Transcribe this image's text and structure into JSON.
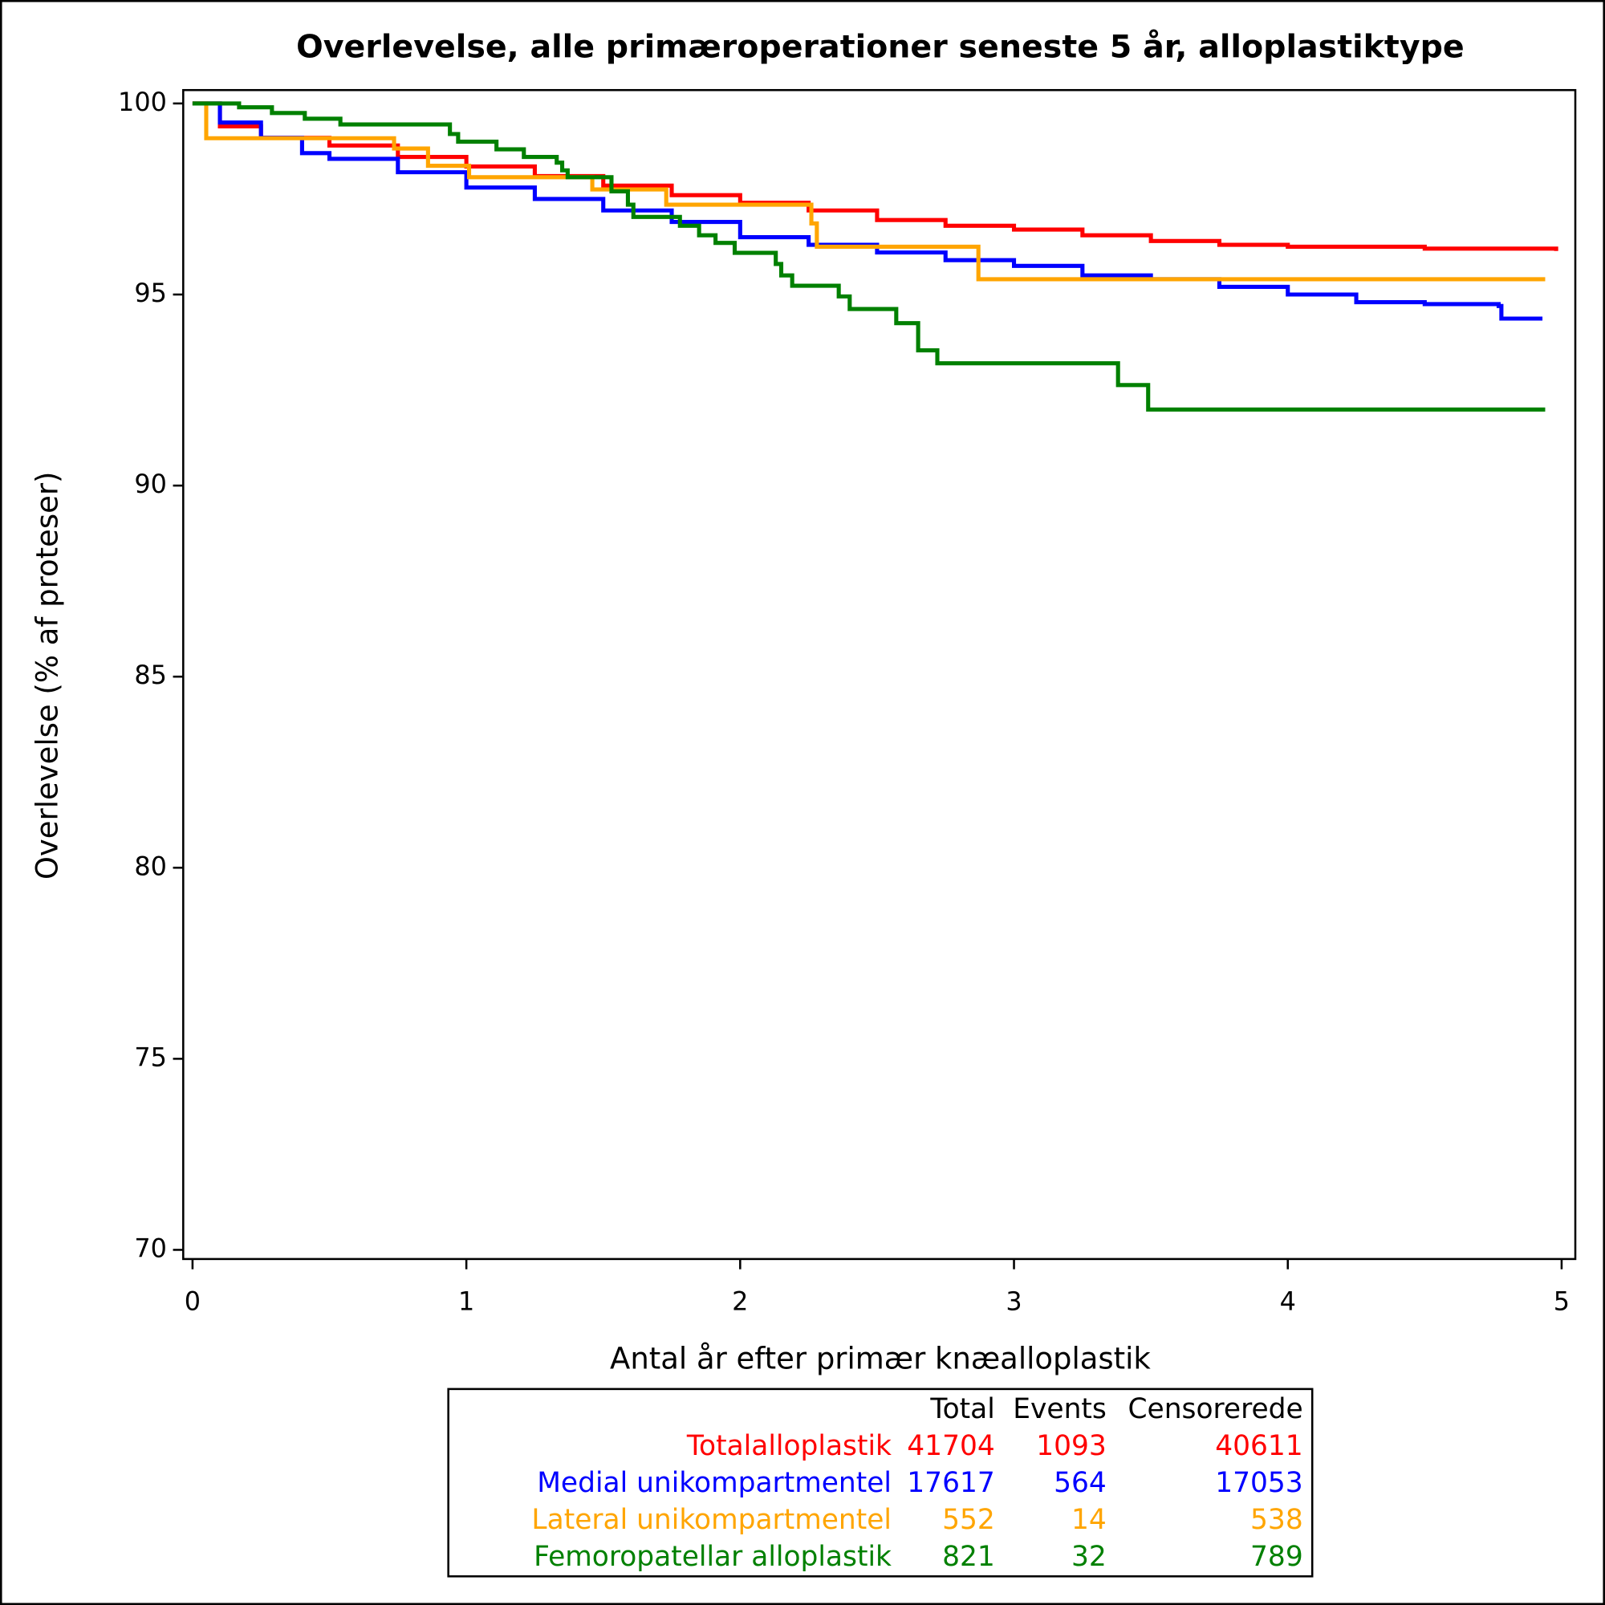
{
  "chart_data": {
    "type": "step",
    "title": "Overlevelse, alle primæroperationer seneste 5 år, alloplastiktype",
    "x_label": "Antal år efter primær knæalloplastik",
    "y_label": "Overlevelse (% af proteser)",
    "xlim": [
      -0.034,
      5.05
    ],
    "ylim": [
      69.76,
      100.35
    ],
    "xticks": [
      0,
      1,
      2,
      3,
      4,
      5
    ],
    "yticks": [
      70,
      75,
      80,
      85,
      90,
      95,
      100
    ],
    "table_headers": [
      "Total",
      "Events",
      "Censorerede"
    ],
    "series": [
      {
        "name": "Totalalloplastik",
        "color": "#ff0000",
        "total": 41704,
        "events": 1093,
        "censored": 40611,
        "x": [
          0,
          0.1,
          0.25,
          0.5,
          0.75,
          1,
          1.25,
          1.5,
          1.75,
          2,
          2.25,
          2.5,
          2.75,
          3,
          3.25,
          3.5,
          3.75,
          4,
          4.5,
          4.98
        ],
        "values": [
          100,
          99.4,
          99.1,
          98.9,
          98.6,
          98.35,
          98.1,
          97.85,
          97.6,
          97.4,
          97.2,
          96.95,
          96.8,
          96.7,
          96.55,
          96.4,
          96.3,
          96.25,
          96.2,
          96.14
        ]
      },
      {
        "name": "Medial unikompartmentel",
        "color": "#0000ff",
        "total": 17617,
        "events": 564,
        "censored": 17053,
        "x": [
          0,
          0.1,
          0.25,
          0.4,
          0.5,
          0.75,
          1,
          1.25,
          1.5,
          1.75,
          2,
          2.25,
          2.5,
          2.75,
          3,
          3.25,
          3.5,
          3.75,
          4,
          4.25,
          4.5,
          4.77,
          4.78,
          4.93
        ],
        "values": [
          100,
          99.5,
          99.1,
          98.7,
          98.55,
          98.2,
          97.8,
          97.5,
          97.2,
          96.9,
          96.5,
          96.3,
          96.1,
          95.9,
          95.75,
          95.5,
          95.4,
          95.2,
          95.0,
          94.8,
          94.75,
          94.7,
          94.37,
          94.37
        ]
      },
      {
        "name": "Lateral unikompartmentel",
        "color": "#ffa500",
        "total": 552,
        "events": 14,
        "censored": 538,
        "x": [
          0,
          0.05,
          0.736,
          0.86,
          1.01,
          1.46,
          1.73,
          2.26,
          2.28,
          2.87,
          4.94
        ],
        "values": [
          100,
          99.09,
          98.82,
          98.37,
          98.07,
          97.75,
          97.35,
          96.86,
          96.25,
          95.4,
          95.4
        ]
      },
      {
        "name": "Femoropatellar alloplastik",
        "color": "#008000",
        "total": 821,
        "events": 32,
        "censored": 789,
        "x": [
          0,
          0.17,
          0.29,
          0.41,
          0.54,
          0.94,
          0.97,
          1.11,
          1.21,
          1.33,
          1.35,
          1.37,
          1.53,
          1.59,
          1.61,
          1.78,
          1.85,
          1.91,
          1.98,
          2.13,
          2.15,
          2.19,
          2.36,
          2.4,
          2.57,
          2.65,
          2.72,
          3.38,
          3.49,
          4.94
        ],
        "values": [
          100,
          99.9,
          99.75,
          99.6,
          99.45,
          99.2,
          99.0,
          98.8,
          98.6,
          98.45,
          98.25,
          98.07,
          97.7,
          97.35,
          97.03,
          96.8,
          96.55,
          96.35,
          96.09,
          95.8,
          95.5,
          95.23,
          94.95,
          94.62,
          94.25,
          93.54,
          93.2,
          92.63,
          91.99,
          91.99
        ]
      }
    ]
  }
}
